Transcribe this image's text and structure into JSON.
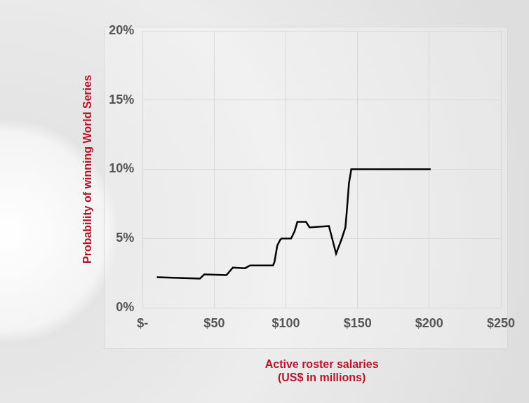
{
  "chart_data": {
    "type": "line",
    "x_label": [
      "Active roster salaries",
      "(US$ in millions)"
    ],
    "y_label": "Probability of winning World Series",
    "x": [
      10,
      40,
      43,
      58.5,
      63,
      71.5,
      75,
      91,
      92,
      94,
      96,
      97,
      103.6,
      106,
      108,
      114,
      116.5,
      130,
      135,
      139,
      141.5,
      142.5,
      144,
      145.6,
      201
    ],
    "values": [
      2.2,
      2.1,
      2.4,
      2.35,
      2.9,
      2.85,
      3.05,
      3.05,
      3.3,
      4.5,
      4.9,
      5.0,
      5.0,
      5.5,
      6.2,
      6.2,
      5.8,
      5.9,
      3.9,
      5.0,
      5.8,
      7.0,
      9.0,
      10.0,
      10.0
    ],
    "color": "#000000",
    "xlim": [
      0,
      250
    ],
    "xticks": [
      {
        "value": 0,
        "label": "$-"
      },
      {
        "value": 50,
        "label": "$50"
      },
      {
        "value": 100,
        "label": "$100"
      },
      {
        "value": 150,
        "label": "$150"
      },
      {
        "value": 200,
        "label": "$200"
      },
      {
        "value": 250,
        "label": "$250"
      }
    ],
    "ylim": [
      0,
      20
    ],
    "yticks": [
      {
        "value": 0,
        "label": "0%"
      },
      {
        "value": 5,
        "label": "5%"
      },
      {
        "value": 10,
        "label": "10%"
      },
      {
        "value": 15,
        "label": "15%"
      },
      {
        "value": 20,
        "label": "20%"
      }
    ],
    "grid": true
  }
}
